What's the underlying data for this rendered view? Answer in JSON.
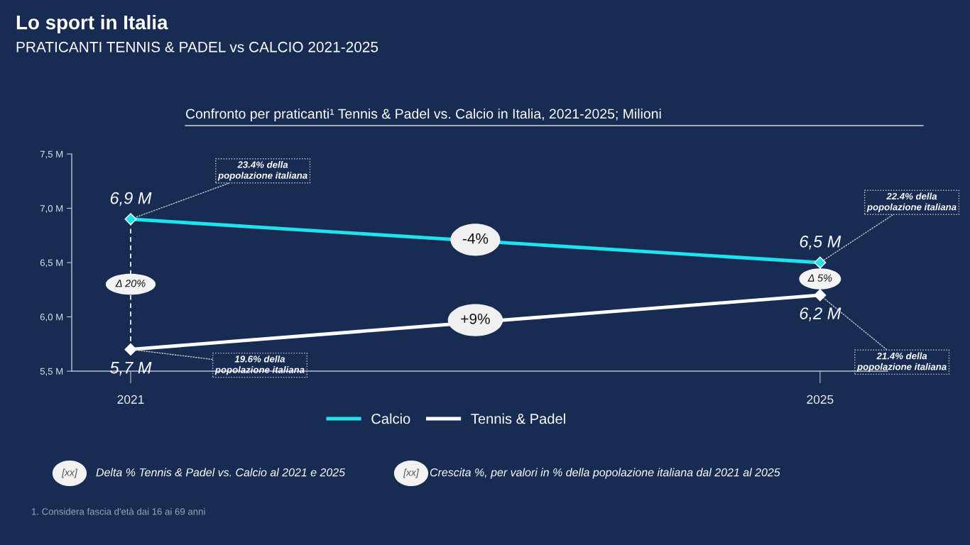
{
  "chart_data": {
    "type": "line",
    "title": "Lo sport in Italia",
    "subtitle": "PRATICANTI TENNIS & PADEL vs CALCIO 2021-2025",
    "categories": [
      "2021",
      "2025"
    ],
    "series": [
      {
        "name": "Calcio",
        "color": "#1fe3ec",
        "values": [
          6.9,
          6.5
        ],
        "value_labels": [
          "6,9 M",
          "6,5 M"
        ]
      },
      {
        "name": "Tennis & Padel",
        "color": "#ffffff",
        "values": [
          5.7,
          6.2
        ],
        "value_labels": [
          "5,7 M",
          "6,2 M"
        ]
      }
    ],
    "ylim": [
      5.5,
      7.5
    ],
    "yticks": [
      {
        "value": 5.5,
        "label": "5,5 M"
      },
      {
        "value": 6.0,
        "label": "6,0 M"
      },
      {
        "value": 6.5,
        "label": "6,5 M"
      },
      {
        "value": 7.0,
        "label": "7,0 M"
      },
      {
        "value": 7.5,
        "label": "7,5 M"
      }
    ],
    "marker": "diamond",
    "line_style": "solid",
    "legend": "bottom",
    "annotations": [
      {
        "text": "23.4% della\npopolazione italiana",
        "x": "2021",
        "y": 6.9
      },
      {
        "text": "19.6% della\npopolazione italiana",
        "x": "2021",
        "y": 5.7
      },
      {
        "text": "22.4% della\npopolazione italiana",
        "x": "2025",
        "y": 6.5
      },
      {
        "text": "21.4% della\npopolazione italiana",
        "x": "2025",
        "y": 6.2
      },
      {
        "text": "-4%",
        "y": 6.71
      },
      {
        "text": "+9%",
        "y": 5.97
      },
      "Δ 20%",
      "Δ 5%",
      "Confronto per praticanti¹ Tennis & Padel vs. Calcio in Italia, 2021-2025; Milioni",
      "[xx]",
      "Delta % Tennis & Padel vs. Calcio al 2021 e 2025",
      "[xx]",
      "Crescita %, per valori in % della popolazione italiana dal 2021 al 2025",
      "1. Considera fascia d'età dai 16 ai 69 anni"
    ]
  }
}
